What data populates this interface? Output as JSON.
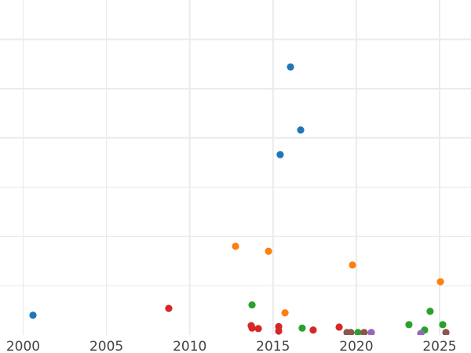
{
  "chart_data": {
    "type": "scatter",
    "title": "",
    "xlabel": "",
    "ylabel": "",
    "xlim": [
      1998.6,
      2027.1
    ],
    "ylim": [
      0,
      6.8
    ],
    "x_ticks": [
      "2000",
      "2005",
      "2010",
      "2015",
      "2020",
      "2025"
    ],
    "grid": true,
    "legend": "none",
    "series": [
      {
        "color": "#1f77b4",
        "points": [
          [
            2016.05,
            5.44
          ],
          [
            2016.66,
            4.16
          ],
          [
            2015.43,
            3.66
          ],
          [
            2000.59,
            0.4
          ]
        ]
      },
      {
        "color": "#ff7f0e",
        "points": [
          [
            2012.75,
            1.8
          ],
          [
            2014.73,
            1.7
          ],
          [
            2019.77,
            1.42
          ],
          [
            2025.05,
            1.08
          ],
          [
            2015.72,
            0.45
          ]
        ]
      },
      {
        "color": "#2ca02c",
        "points": [
          [
            2013.74,
            0.61
          ],
          [
            2016.75,
            0.14
          ],
          [
            2024.43,
            0.48
          ],
          [
            2023.16,
            0.21
          ],
          [
            2025.19,
            0.21
          ],
          [
            2024.1,
            0.1
          ],
          [
            2020.1,
            0.05
          ]
        ]
      },
      {
        "color": "#d62728",
        "points": [
          [
            2008.74,
            0.54
          ],
          [
            2013.69,
            0.19
          ],
          [
            2013.74,
            0.14
          ],
          [
            2014.12,
            0.13
          ],
          [
            2015.34,
            0.17
          ],
          [
            2015.34,
            0.08
          ],
          [
            2017.41,
            0.1
          ],
          [
            2018.97,
            0.16
          ]
        ]
      },
      {
        "color": "#8c564b",
        "points": [
          [
            2019.44,
            0.05
          ],
          [
            2019.67,
            0.05
          ],
          [
            2020.47,
            0.05
          ],
          [
            2025.38,
            0.05
          ]
        ]
      },
      {
        "color": "#9467bd",
        "points": [
          [
            2020.9,
            0.05
          ],
          [
            2023.87,
            0.03
          ]
        ]
      }
    ]
  }
}
